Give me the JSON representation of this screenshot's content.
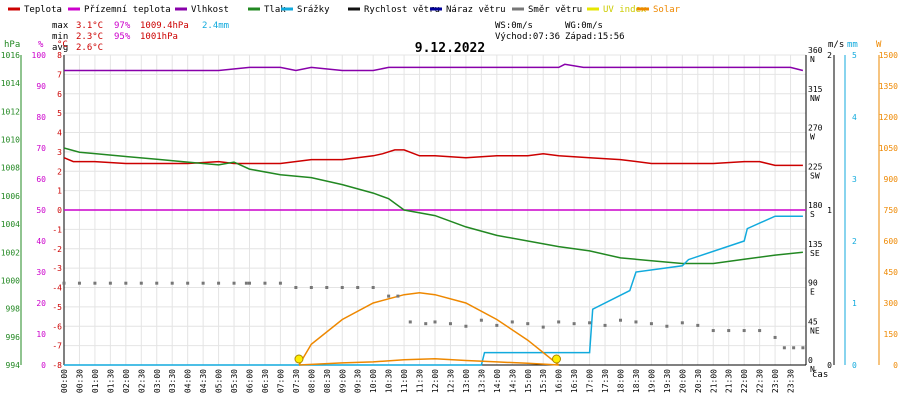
{
  "chart_data": {
    "type": "line",
    "title": "9.12.2022",
    "legend": [
      {
        "label": "Teplota",
        "color": "#cc0000"
      },
      {
        "label": "Přízemní teplota",
        "color": "#cc00cc"
      },
      {
        "label": "Vlhkost",
        "color": "#8800aa"
      },
      {
        "label": "Tlak",
        "color": "#228822"
      },
      {
        "label": "Srážky",
        "color": "#11aadd"
      },
      {
        "label": "Rychlost větru",
        "color": "#111111"
      },
      {
        "label": "Náraz větru",
        "color": "#000099"
      },
      {
        "label": "Směr větru",
        "color": "#777777"
      },
      {
        "label": "UV index",
        "color": "#e6e600"
      },
      {
        "label": "Solar",
        "color": "#ee8800"
      }
    ],
    "stats": [
      {
        "label": "max",
        "temp": "3.1°C",
        "hum": "97%",
        "press": "1009.4hPa",
        "rain": "2.4mm"
      },
      {
        "label": "min",
        "temp": "2.3°C",
        "hum": "95%",
        "press": "1001hPa",
        "rain": ""
      },
      {
        "label": "avg",
        "temp": "2.6°C",
        "hum": "",
        "press": "",
        "rain": ""
      }
    ],
    "wind_info": {
      "ws": "WS:0m/s",
      "wg": "WG:0m/s",
      "sunrise": "Východ:07:36",
      "sunset": "Západ:15:56"
    },
    "axes": {
      "hpa": {
        "label": "hPa",
        "color": "#228822",
        "ticks": [
          "994",
          "996",
          "998",
          "1000",
          "1002",
          "1004",
          "1006",
          "1008",
          "1010",
          "1012",
          "1014",
          "1016"
        ],
        "range": [
          994,
          1016
        ]
      },
      "pct": {
        "label": "%",
        "color": "#cc00cc",
        "ticks": [
          "0",
          "10",
          "20",
          "30",
          "40",
          "50",
          "60",
          "70",
          "80",
          "90",
          "100"
        ],
        "range": [
          0,
          100
        ]
      },
      "degc": {
        "label": "°C",
        "color": "#cc0000",
        "ticks": [
          "-8",
          "-7",
          "-6",
          "-5",
          "-4",
          "-3",
          "-2",
          "-1",
          "0",
          "1",
          "2",
          "3",
          "4",
          "5",
          "6",
          "7",
          "8"
        ],
        "range": [
          -8,
          8
        ]
      },
      "dir": {
        "ticks": [
          [
            "0",
            "N"
          ],
          [
            "45",
            "NE"
          ],
          [
            "90",
            "E"
          ],
          [
            "135",
            "SE"
          ],
          [
            "180",
            "S"
          ],
          [
            "225",
            "SW"
          ],
          [
            "270",
            "W"
          ],
          [
            "315",
            "NW"
          ],
          [
            "360",
            "N"
          ]
        ],
        "range": [
          0,
          360
        ]
      },
      "ms": {
        "label": "m/s",
        "color": "#000000",
        "ticks": [
          "0",
          "1",
          "2"
        ],
        "range": [
          0,
          2
        ]
      },
      "mm": {
        "label": "mm",
        "color": "#11aadd",
        "ticks": [
          "0",
          "1",
          "2",
          "3",
          "4",
          "5"
        ],
        "range": [
          0,
          5
        ]
      },
      "w": {
        "label": "W",
        "color": "#ee8800",
        "ticks": [
          "0",
          "150",
          "300",
          "450",
          "600",
          "750",
          "900",
          "1050",
          "1200",
          "1350",
          "1500"
        ],
        "range": [
          0,
          1500
        ]
      }
    },
    "x_label": "čas",
    "x_ticks": [
      "00:00",
      "00:30",
      "01:00",
      "01:30",
      "02:00",
      "02:30",
      "03:00",
      "03:30",
      "04:00",
      "04:30",
      "05:00",
      "05:30",
      "06:00",
      "06:30",
      "07:00",
      "07:30",
      "08:00",
      "08:30",
      "09:00",
      "09:30",
      "10:00",
      "10:30",
      "11:00",
      "11:30",
      "12:00",
      "12:30",
      "13:00",
      "13:30",
      "14:00",
      "14:30",
      "15:00",
      "15:30",
      "16:00",
      "16:30",
      "17:00",
      "17:30",
      "18:00",
      "18:30",
      "19:00",
      "19:30",
      "20:00",
      "20:30",
      "21:00",
      "21:30",
      "22:00",
      "22:30",
      "23:00",
      "23:30"
    ],
    "grid": true,
    "series": [
      {
        "name": "Teplota",
        "axis": "degc",
        "color": "#cc0000",
        "x": [
          0,
          0.3,
          1,
          2,
          3,
          4,
          5,
          5.5,
          6,
          7,
          8,
          9,
          10,
          10.3,
          10.7,
          11,
          11.5,
          12,
          13,
          14,
          15,
          15.5,
          16,
          17,
          18,
          19,
          20,
          21,
          22,
          22.5,
          23,
          23.9
        ],
        "y": [
          2.7,
          2.5,
          2.5,
          2.4,
          2.4,
          2.4,
          2.5,
          2.4,
          2.4,
          2.4,
          2.6,
          2.6,
          2.8,
          2.9,
          3.1,
          3.1,
          2.8,
          2.8,
          2.7,
          2.8,
          2.8,
          2.9,
          2.8,
          2.7,
          2.6,
          2.4,
          2.4,
          2.4,
          2.5,
          2.5,
          2.3,
          2.3
        ]
      },
      {
        "name": "Vlhkost",
        "axis": "pct",
        "color": "#8800aa",
        "x": [
          0,
          5,
          6,
          7,
          7.5,
          8,
          9,
          10,
          10.5,
          11,
          12,
          14,
          16,
          16.2,
          16.8,
          17,
          20,
          23.5,
          23.9
        ],
        "y": [
          95,
          95,
          96,
          96,
          95,
          96,
          95,
          95,
          96,
          96,
          96,
          96,
          96,
          97,
          96,
          96,
          96,
          96,
          95
        ]
      },
      {
        "name": "Přízemní teplota",
        "axis": "degc",
        "color": "#cc00cc",
        "x": [
          0,
          24
        ],
        "y": [
          0,
          0
        ]
      },
      {
        "name": "Tlak",
        "axis": "hpa",
        "color": "#228822",
        "x": [
          0,
          0.5,
          1,
          2,
          3,
          4,
          5,
          5.5,
          6,
          7,
          8,
          9,
          10,
          10.5,
          11,
          12,
          13,
          14,
          15,
          16,
          17,
          18,
          19,
          20,
          21,
          22,
          23,
          23.9
        ],
        "y": [
          1009.4,
          1009.1,
          1009.0,
          1008.8,
          1008.6,
          1008.4,
          1008.2,
          1008.4,
          1007.9,
          1007.5,
          1007.3,
          1006.8,
          1006.2,
          1005.8,
          1005.0,
          1004.6,
          1003.8,
          1003.2,
          1002.8,
          1002.4,
          1002.1,
          1001.6,
          1001.4,
          1001.2,
          1001.2,
          1001.5,
          1001.8,
          1002.0
        ]
      },
      {
        "name": "Srážky",
        "axis": "mm",
        "color": "#11aadd",
        "x": [
          0,
          13.5,
          13.6,
          17,
          17.1,
          18.3,
          18.5,
          20,
          20.2,
          22,
          22.1,
          23,
          23.2,
          23.9
        ],
        "y": [
          0,
          0,
          0.2,
          0.2,
          0.9,
          1.2,
          1.5,
          1.6,
          1.7,
          2.0,
          2.2,
          2.4,
          2.4,
          2.4
        ]
      },
      {
        "name": "Solar",
        "axis": "w",
        "color": "#ee8800",
        "x": [
          7.6,
          8,
          9,
          10,
          11,
          11.5,
          12,
          13,
          14,
          15,
          16
        ],
        "y": [
          0,
          100,
          220,
          300,
          340,
          350,
          340,
          300,
          220,
          120,
          0
        ]
      },
      {
        "name": "Solar",
        "axis": "w",
        "color": "#ee8800",
        "x": [
          7.6,
          9,
          10,
          11,
          12,
          13,
          14,
          15,
          16
        ],
        "y": [
          0,
          10,
          15,
          25,
          30,
          22,
          15,
          8,
          0
        ]
      },
      {
        "name": "Směr větru",
        "axis": "dir",
        "color": "#777777",
        "kind": "scatter",
        "x": [
          0,
          0.5,
          1,
          1.5,
          2,
          2.5,
          3,
          3.5,
          4,
          4.5,
          5,
          5.5,
          5.9,
          6,
          6.5,
          7,
          7.5,
          8,
          8.5,
          9,
          9.5,
          10,
          10.5,
          10.8,
          11.2,
          11.7,
          12,
          12.5,
          13,
          13.5,
          14,
          14.5,
          15,
          15.5,
          16,
          16.5,
          17,
          17.5,
          18,
          18.5,
          19,
          19.5,
          20,
          20.5,
          21,
          21.5,
          22,
          22.5,
          23,
          23.3,
          23.6,
          23.9
        ],
        "y": [
          95,
          95,
          95,
          95,
          95,
          95,
          95,
          95,
          95,
          95,
          95,
          95,
          95,
          95,
          95,
          95,
          90,
          90,
          90,
          90,
          90,
          90,
          80,
          80,
          50,
          48,
          50,
          48,
          45,
          52,
          46,
          50,
          48,
          44,
          50,
          48,
          49,
          46,
          52,
          50,
          48,
          45,
          49,
          46,
          40,
          40,
          40,
          40,
          32,
          20,
          20,
          20
        ]
      }
    ]
  }
}
